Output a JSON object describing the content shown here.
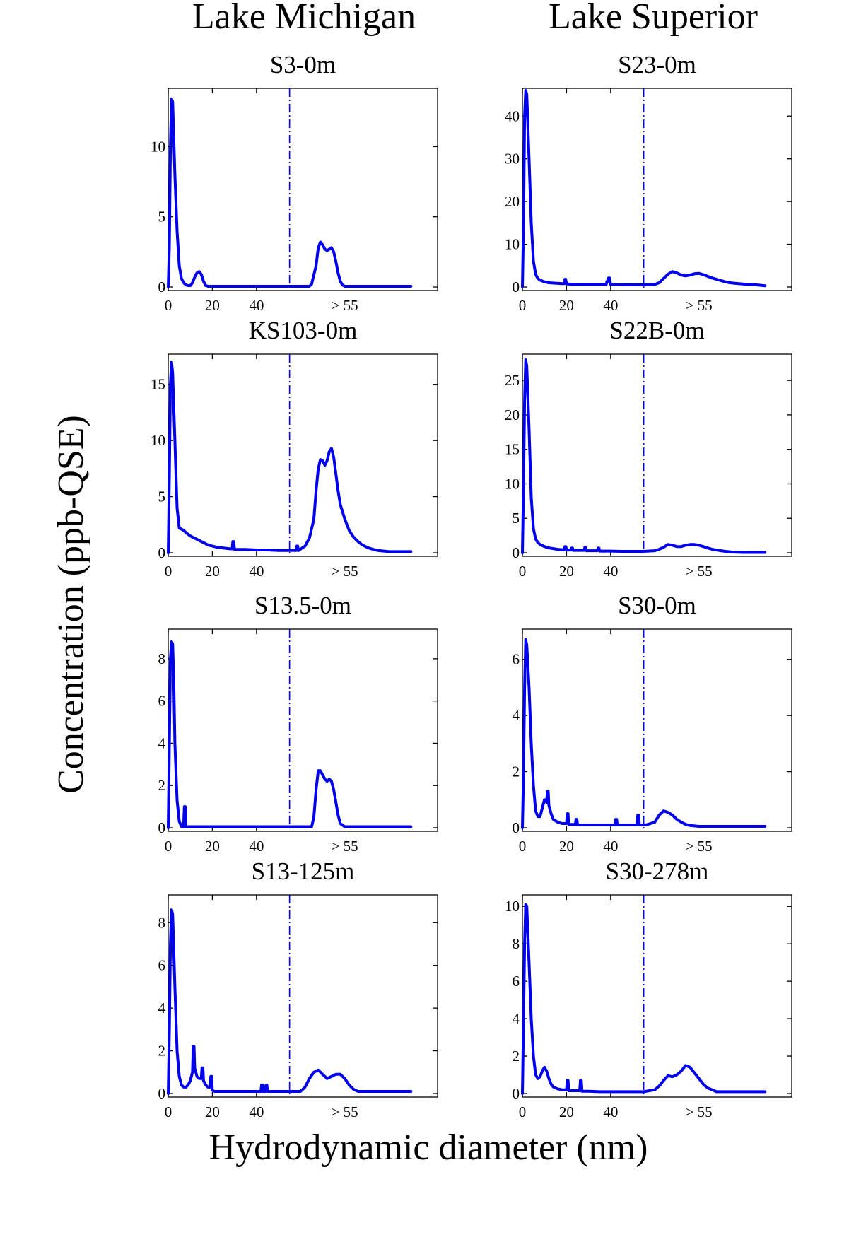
{
  "figure": {
    "column_titles": [
      "Lake Michigan",
      "Lake Superior"
    ],
    "ylabel": "Concentration (ppb-QSE)",
    "xlabel": "Hydrodynamic diameter (nm)"
  },
  "colors": {
    "series": "#0000ee",
    "cutoff": "#0000ee",
    "axes": "#000000"
  },
  "chart_data": [
    {
      "type": "line",
      "lake": "Lake Michigan",
      "title": "S3-0m",
      "xticks": [
        0,
        20,
        40
      ],
      "x_tick_extra": "> 55",
      "xlim": [
        0,
        116
      ],
      "cutoff_x": 55,
      "ylim": [
        0,
        14
      ],
      "yticks": [
        0,
        5,
        10
      ],
      "series": [
        {
          "x": [
            0,
            0.5,
            1,
            1.5,
            2,
            3,
            4,
            5,
            6,
            7,
            8,
            9,
            10,
            11,
            12,
            13,
            14,
            15,
            16,
            17,
            18,
            19,
            20,
            30,
            40,
            50,
            55,
            60,
            64,
            65,
            67,
            68,
            69,
            70,
            71,
            72,
            73,
            74,
            75,
            76,
            77,
            78,
            79,
            80,
            82,
            84,
            90,
            100,
            110
          ],
          "y": [
            0,
            3,
            10,
            13.4,
            13.2,
            8,
            4,
            1.5,
            0.6,
            0.3,
            0.15,
            0.1,
            0.1,
            0.3,
            0.7,
            1,
            1.1,
            0.9,
            0.4,
            0.1,
            0.05,
            0.05,
            0.05,
            0.05,
            0.05,
            0.05,
            0.05,
            0.05,
            0.05,
            0.2,
            1.5,
            2.8,
            3.2,
            3,
            2.7,
            2.6,
            2.7,
            2.8,
            2.5,
            1.8,
            1,
            0.4,
            0.15,
            0.05,
            0.05,
            0.05,
            0.05,
            0.05,
            0.05
          ]
        }
      ]
    },
    {
      "type": "line",
      "lake": "Lake Superior",
      "title": "S23-0m",
      "xticks": [
        0,
        20,
        40
      ],
      "x_tick_extra": "> 55",
      "xlim": [
        0,
        116
      ],
      "cutoff_x": 55,
      "ylim": [
        0,
        46
      ],
      "yticks": [
        0,
        10,
        20,
        30,
        40
      ],
      "series": [
        {
          "x": [
            0,
            0.5,
            1,
            1.5,
            2,
            3,
            4,
            5,
            6,
            7,
            8,
            10,
            12,
            15,
            18,
            19,
            19.3,
            19.6,
            20,
            25,
            30,
            35,
            38,
            38.3,
            38.6,
            39,
            39.5,
            40,
            45,
            50,
            55,
            60,
            62,
            64,
            66,
            68,
            70,
            72,
            74,
            76,
            78,
            80,
            82,
            84,
            86,
            88,
            90,
            92,
            94,
            96,
            98,
            100,
            102,
            104,
            106,
            108,
            110
          ],
          "y": [
            0,
            15,
            40,
            46,
            45,
            30,
            15,
            6,
            3,
            2,
            1.6,
            1.2,
            1,
            0.9,
            0.8,
            0.8,
            1.8,
            1.8,
            0.7,
            0.6,
            0.6,
            0.6,
            0.6,
            1.3,
            1.3,
            2.1,
            2.1,
            0.6,
            0.5,
            0.5,
            0.5,
            0.6,
            1,
            2,
            3,
            3.6,
            3.3,
            2.8,
            2.6,
            2.8,
            3.1,
            3.2,
            2.9,
            2.5,
            2.1,
            1.8,
            1.5,
            1.2,
            1,
            0.9,
            0.8,
            0.7,
            0.6,
            0.6,
            0.5,
            0.4,
            0.3
          ]
        }
      ]
    },
    {
      "type": "line",
      "lake": "Lake Michigan",
      "title": "KS103-0m",
      "xticks": [
        0,
        20,
        40
      ],
      "x_tick_extra": "> 55",
      "xlim": [
        0,
        116
      ],
      "cutoff_x": 55,
      "ylim": [
        0,
        17.5
      ],
      "yticks": [
        0,
        5,
        10,
        15
      ],
      "series": [
        {
          "x": [
            0,
            0.5,
            1,
            1.5,
            2,
            3,
            4,
            5,
            6,
            7,
            8,
            10,
            12,
            14,
            16,
            18,
            20,
            22,
            24,
            26,
            28,
            29,
            29.3,
            29.7,
            30,
            32,
            35,
            40,
            45,
            50,
            52,
            55,
            57,
            58,
            58.3,
            58.7,
            59,
            62,
            64,
            66,
            67,
            68,
            69,
            70,
            71,
            72,
            73,
            74,
            75,
            76,
            77,
            78,
            80,
            82,
            84,
            86,
            88,
            90,
            92,
            95,
            100,
            110
          ],
          "y": [
            0,
            7,
            15,
            17,
            16,
            10,
            4,
            2.2,
            2.1,
            2,
            1.8,
            1.5,
            1.3,
            1.1,
            0.9,
            0.7,
            0.6,
            0.5,
            0.45,
            0.4,
            0.35,
            0.35,
            1,
            1,
            0.3,
            0.3,
            0.3,
            0.25,
            0.25,
            0.2,
            0.2,
            0.2,
            0.2,
            0.2,
            0.6,
            0.6,
            0.2,
            0.6,
            1.3,
            3,
            5.5,
            7.5,
            8.3,
            8.2,
            7.8,
            8.2,
            9,
            9.3,
            8.5,
            7,
            5.5,
            4.3,
            3,
            2,
            1.4,
            1,
            0.7,
            0.5,
            0.35,
            0.2,
            0.1,
            0.1
          ]
        }
      ]
    },
    {
      "type": "line",
      "lake": "Lake Superior",
      "title": "S22B-0m",
      "xticks": [
        0,
        20,
        40
      ],
      "x_tick_extra": "> 55",
      "xlim": [
        0,
        116
      ],
      "cutoff_x": 55,
      "ylim": [
        0,
        28.5
      ],
      "yticks": [
        0,
        5,
        10,
        15,
        20,
        25
      ],
      "series": [
        {
          "x": [
            0,
            0.5,
            1,
            1.5,
            2,
            3,
            4,
            5,
            6,
            7,
            8,
            10,
            12,
            14,
            16,
            18,
            19,
            19.3,
            19.7,
            20,
            22,
            22.3,
            22.7,
            23,
            25,
            27,
            28,
            28.3,
            28.7,
            29,
            32,
            34,
            34.3,
            34.7,
            35,
            38,
            40,
            45,
            50,
            55,
            60,
            62,
            64,
            66,
            68,
            70,
            72,
            74,
            76,
            78,
            80,
            82,
            84,
            86,
            88,
            90,
            92,
            95,
            100,
            110
          ],
          "y": [
            0,
            10,
            22,
            28,
            27,
            18,
            8,
            3.5,
            2,
            1.5,
            1.2,
            0.9,
            0.7,
            0.6,
            0.5,
            0.45,
            0.4,
            0.9,
            0.9,
            0.4,
            0.4,
            0.7,
            0.7,
            0.35,
            0.35,
            0.35,
            0.35,
            0.8,
            0.8,
            0.3,
            0.3,
            0.3,
            0.7,
            0.7,
            0.25,
            0.25,
            0.25,
            0.2,
            0.2,
            0.2,
            0.3,
            0.5,
            0.8,
            1.2,
            1.1,
            0.9,
            0.9,
            1.1,
            1.2,
            1.2,
            1.1,
            0.9,
            0.7,
            0.5,
            0.4,
            0.3,
            0.2,
            0.1,
            0.05,
            0.05
          ]
        }
      ]
    },
    {
      "type": "line",
      "lake": "Lake Michigan",
      "title": "S13.5-0m",
      "xticks": [
        0,
        20,
        40
      ],
      "x_tick_extra": "> 55",
      "xlim": [
        0,
        116
      ],
      "cutoff_x": 55,
      "ylim": [
        0,
        9.3
      ],
      "yticks": [
        0,
        2,
        4,
        6,
        8
      ],
      "series": [
        {
          "x": [
            0,
            0.5,
            1,
            1.5,
            2,
            2.5,
            3,
            4,
            5,
            6,
            7,
            7.3,
            7.7,
            8,
            10,
            20,
            30,
            40,
            50,
            55,
            60,
            63,
            65,
            66,
            67,
            68,
            69,
            70,
            71,
            72,
            73,
            74,
            75,
            76,
            77,
            78,
            80,
            90,
            100,
            110
          ],
          "y": [
            0,
            4,
            8,
            8.8,
            8.7,
            7,
            4,
            1.3,
            0.3,
            0.05,
            0.05,
            1,
            1,
            0.05,
            0.05,
            0.05,
            0.05,
            0.05,
            0.05,
            0.05,
            0.05,
            0.05,
            0.05,
            0.5,
            1.8,
            2.7,
            2.7,
            2.5,
            2.3,
            2.2,
            2.3,
            2.2,
            1.8,
            1.2,
            0.6,
            0.2,
            0.05,
            0.05,
            0.05,
            0.05
          ]
        }
      ]
    },
    {
      "type": "line",
      "lake": "Lake Superior",
      "title": "S30-0m",
      "xticks": [
        0,
        20,
        40
      ],
      "x_tick_extra": "> 55",
      "xlim": [
        0,
        116
      ],
      "cutoff_x": 55,
      "ylim": [
        0,
        7
      ],
      "yticks": [
        0,
        2,
        4,
        6
      ],
      "series": [
        {
          "x": [
            0,
            0.5,
            1,
            1.5,
            2,
            3,
            4,
            5,
            6,
            7,
            8,
            9,
            10,
            11,
            11.3,
            11.7,
            12,
            13,
            14,
            16,
            18,
            20,
            20.3,
            20.7,
            21,
            24,
            24.3,
            24.7,
            25,
            30,
            35,
            40,
            42,
            42.3,
            42.7,
            43,
            48,
            52,
            52.3,
            52.7,
            53,
            56,
            60,
            62,
            64,
            66,
            68,
            70,
            72,
            74,
            76,
            80,
            90,
            100,
            110
          ],
          "y": [
            0,
            2,
            5,
            6.7,
            6.5,
            5,
            3,
            1.5,
            0.6,
            0.4,
            0.4,
            0.7,
            1,
            0.9,
            1.3,
            1.3,
            0.8,
            0.5,
            0.3,
            0.2,
            0.15,
            0.15,
            0.5,
            0.5,
            0.12,
            0.12,
            0.3,
            0.3,
            0.1,
            0.1,
            0.1,
            0.1,
            0.1,
            0.3,
            0.3,
            0.1,
            0.1,
            0.1,
            0.45,
            0.45,
            0.1,
            0.1,
            0.2,
            0.45,
            0.6,
            0.55,
            0.45,
            0.3,
            0.2,
            0.12,
            0.08,
            0.05,
            0.05,
            0.05,
            0.05
          ]
        }
      ]
    },
    {
      "type": "line",
      "lake": "Lake Michigan",
      "title": "S13-125m",
      "xticks": [
        0,
        20,
        40
      ],
      "x_tick_extra": "> 55",
      "xlim": [
        0,
        116
      ],
      "cutoff_x": 55,
      "ylim": [
        0,
        9.2
      ],
      "yticks": [
        0,
        2,
        4,
        6,
        8
      ],
      "series": [
        {
          "x": [
            0,
            0.5,
            1,
            1.5,
            2,
            3,
            4,
            5,
            6,
            7,
            8,
            9,
            10,
            11,
            11.3,
            11.7,
            12,
            13,
            14,
            15,
            15.3,
            15.7,
            16,
            17,
            18,
            19,
            19.3,
            19.7,
            20,
            21,
            24,
            30,
            35,
            40,
            42,
            42.3,
            42.7,
            43,
            44,
            44.3,
            44.7,
            45,
            48,
            52,
            55,
            60,
            62,
            64,
            66,
            68,
            70,
            72,
            74,
            76,
            78,
            80,
            82,
            84,
            86,
            88,
            90,
            95,
            100,
            110
          ],
          "y": [
            0,
            3,
            7,
            8.6,
            8.4,
            5,
            2,
            0.8,
            0.4,
            0.3,
            0.3,
            0.4,
            0.6,
            1,
            2.2,
            2.2,
            1.2,
            0.8,
            0.7,
            0.7,
            1.2,
            1.2,
            0.6,
            0.4,
            0.3,
            0.3,
            0.8,
            0.8,
            0.15,
            0.1,
            0.1,
            0.1,
            0.1,
            0.1,
            0.1,
            0.4,
            0.4,
            0.1,
            0.1,
            0.4,
            0.4,
            0.1,
            0.1,
            0.1,
            0.1,
            0.1,
            0.3,
            0.7,
            1,
            1.1,
            0.9,
            0.7,
            0.8,
            0.9,
            0.9,
            0.7,
            0.4,
            0.2,
            0.1,
            0.1,
            0.1,
            0.1,
            0.1,
            0.1
          ]
        }
      ]
    },
    {
      "type": "line",
      "lake": "Lake Superior",
      "title": "S30-278m",
      "xticks": [
        0,
        20,
        40
      ],
      "x_tick_extra": "> 55",
      "xlim": [
        0,
        116
      ],
      "cutoff_x": 55,
      "ylim": [
        0,
        10.5
      ],
      "yticks": [
        0,
        2,
        4,
        6,
        8,
        10
      ],
      "series": [
        {
          "x": [
            0,
            0.5,
            1,
            1.5,
            2,
            3,
            4,
            5,
            6,
            7,
            8,
            9,
            10,
            11,
            12,
            13,
            14,
            16,
            18,
            20,
            20.3,
            20.7,
            21,
            25,
            26,
            26.3,
            26.7,
            27,
            30,
            35,
            40,
            45,
            50,
            55,
            60,
            62,
            64,
            66,
            68,
            70,
            72,
            74,
            76,
            78,
            80,
            82,
            84,
            86,
            88,
            90,
            95,
            100,
            110
          ],
          "y": [
            0,
            4,
            8,
            10.1,
            10,
            7,
            4,
            2,
            1,
            0.8,
            0.9,
            1.2,
            1.4,
            1.2,
            0.8,
            0.5,
            0.35,
            0.25,
            0.2,
            0.2,
            0.7,
            0.7,
            0.15,
            0.15,
            0.15,
            0.7,
            0.7,
            0.12,
            0.12,
            0.1,
            0.1,
            0.1,
            0.1,
            0.1,
            0.2,
            0.4,
            0.7,
            0.95,
            0.9,
            1,
            1.2,
            1.5,
            1.4,
            1.1,
            0.8,
            0.5,
            0.3,
            0.2,
            0.1,
            0.1,
            0.1,
            0.1,
            0.1
          ]
        }
      ]
    }
  ]
}
